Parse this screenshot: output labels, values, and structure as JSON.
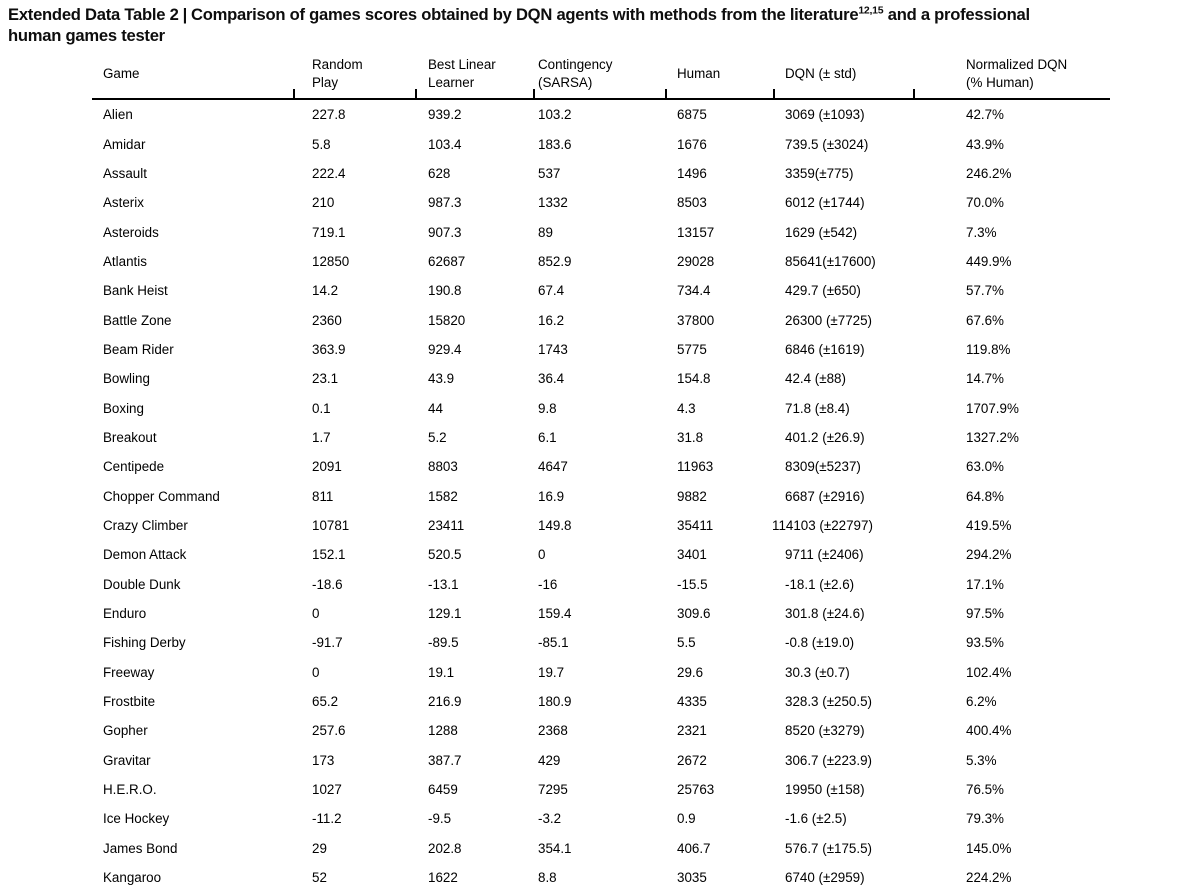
{
  "title": {
    "label": "Extended Data Table 2",
    "separator": "|",
    "text_before_sup": "Comparison of games scores obtained by DQN agents with methods from the literature",
    "superscript": "12,15",
    "text_after_sup": " and a professional",
    "second_line": "human games tester"
  },
  "table": {
    "headers": [
      {
        "line1": "Game",
        "line2": ""
      },
      {
        "line1": "Random",
        "line2": "Play"
      },
      {
        "line1": "Best Linear",
        "line2": "Learner"
      },
      {
        "line1": "Contingency",
        "line2": "(SARSA)"
      },
      {
        "line1": "Human",
        "line2": ""
      },
      {
        "line1": "DQN (± std)",
        "line2": ""
      },
      {
        "line1": "Normalized DQN",
        "line2": "(% Human)"
      }
    ],
    "rows": [
      {
        "game": "Alien",
        "random_play": "227.8",
        "best_linear": "939.2",
        "sarsa": "103.2",
        "human": "6875",
        "dqn": "3069 (±1093)",
        "normalized": "42.7%"
      },
      {
        "game": "Amidar",
        "random_play": "5.8",
        "best_linear": "103.4",
        "sarsa": "183.6",
        "human": "1676",
        "dqn": "739.5 (±3024)",
        "normalized": "43.9%"
      },
      {
        "game": "Assault",
        "random_play": "222.4",
        "best_linear": "628",
        "sarsa": "537",
        "human": "1496",
        "dqn": "3359(±775)",
        "normalized": "246.2%"
      },
      {
        "game": "Asterix",
        "random_play": "210",
        "best_linear": "987.3",
        "sarsa": "1332",
        "human": "8503",
        "dqn": "6012 (±1744)",
        "normalized": "70.0%"
      },
      {
        "game": "Asteroids",
        "random_play": "719.1",
        "best_linear": "907.3",
        "sarsa": "89",
        "human": "13157",
        "dqn": "1629 (±542)",
        "normalized": "7.3%"
      },
      {
        "game": "Atlantis",
        "random_play": "12850",
        "best_linear": "62687",
        "sarsa": "852.9",
        "human": "29028",
        "dqn": "85641(±17600)",
        "normalized": "449.9%"
      },
      {
        "game": "Bank Heist",
        "random_play": "14.2",
        "best_linear": "190.8",
        "sarsa": "67.4",
        "human": "734.4",
        "dqn": "429.7 (±650)",
        "normalized": "57.7%"
      },
      {
        "game": "Battle Zone",
        "random_play": "2360",
        "best_linear": "15820",
        "sarsa": "16.2",
        "human": "37800",
        "dqn": "26300 (±7725)",
        "normalized": "67.6%"
      },
      {
        "game": "Beam Rider",
        "random_play": "363.9",
        "best_linear": "929.4",
        "sarsa": "1743",
        "human": "5775",
        "dqn": "6846 (±1619)",
        "normalized": "119.8%"
      },
      {
        "game": "Bowling",
        "random_play": "23.1",
        "best_linear": "43.9",
        "sarsa": "36.4",
        "human": "154.8",
        "dqn": "42.4 (±88)",
        "normalized": "14.7%"
      },
      {
        "game": "Boxing",
        "random_play": "0.1",
        "best_linear": "44",
        "sarsa": "9.8",
        "human": "4.3",
        "dqn": "71.8 (±8.4)",
        "normalized": "1707.9%"
      },
      {
        "game": "Breakout",
        "random_play": "1.7",
        "best_linear": "5.2",
        "sarsa": "6.1",
        "human": "31.8",
        "dqn": "401.2 (±26.9)",
        "normalized": "1327.2%"
      },
      {
        "game": "Centipede",
        "random_play": "2091",
        "best_linear": "8803",
        "sarsa": "4647",
        "human": "11963",
        "dqn": "8309(±5237)",
        "normalized": "63.0%"
      },
      {
        "game": "Chopper Command",
        "random_play": "811",
        "best_linear": "1582",
        "sarsa": "16.9",
        "human": "9882",
        "dqn": "6687 (±2916)",
        "normalized": "64.8%"
      },
      {
        "game": "Crazy Climber",
        "random_play": "10781",
        "best_linear": "23411",
        "sarsa": "149.8",
        "human": "35411",
        "dqn": "114103 (±22797)",
        "normalized": "419.5%"
      },
      {
        "game": "Demon Attack",
        "random_play": "152.1",
        "best_linear": "520.5",
        "sarsa": "0",
        "human": "3401",
        "dqn": "9711 (±2406)",
        "normalized": "294.2%"
      },
      {
        "game": "Double Dunk",
        "random_play": "-18.6",
        "best_linear": "-13.1",
        "sarsa": "-16",
        "human": "-15.5",
        "dqn": "-18.1 (±2.6)",
        "normalized": "17.1%"
      },
      {
        "game": "Enduro",
        "random_play": "0",
        "best_linear": "129.1",
        "sarsa": "159.4",
        "human": "309.6",
        "dqn": "301.8 (±24.6)",
        "normalized": "97.5%"
      },
      {
        "game": "Fishing Derby",
        "random_play": "-91.7",
        "best_linear": "-89.5",
        "sarsa": "-85.1",
        "human": "5.5",
        "dqn": "-0.8 (±19.0)",
        "normalized": "93.5%"
      },
      {
        "game": "Freeway",
        "random_play": "0",
        "best_linear": "19.1",
        "sarsa": "19.7",
        "human": "29.6",
        "dqn": "30.3 (±0.7)",
        "normalized": "102.4%"
      },
      {
        "game": "Frostbite",
        "random_play": "65.2",
        "best_linear": "216.9",
        "sarsa": "180.9",
        "human": "4335",
        "dqn": "328.3 (±250.5)",
        "normalized": "6.2%"
      },
      {
        "game": "Gopher",
        "random_play": "257.6",
        "best_linear": "1288",
        "sarsa": "2368",
        "human": "2321",
        "dqn": "8520 (±3279)",
        "normalized": "400.4%"
      },
      {
        "game": "Gravitar",
        "random_play": "173",
        "best_linear": "387.7",
        "sarsa": "429",
        "human": "2672",
        "dqn": "306.7 (±223.9)",
        "normalized": "5.3%"
      },
      {
        "game": "H.E.R.O.",
        "random_play": "1027",
        "best_linear": "6459",
        "sarsa": "7295",
        "human": "25763",
        "dqn": "19950 (±158)",
        "normalized": "76.5%"
      },
      {
        "game": "Ice Hockey",
        "random_play": "-11.2",
        "best_linear": "-9.5",
        "sarsa": "-3.2",
        "human": "0.9",
        "dqn": "-1.6 (±2.5)",
        "normalized": "79.3%"
      },
      {
        "game": "James Bond",
        "random_play": "29",
        "best_linear": "202.8",
        "sarsa": "354.1",
        "human": "406.7",
        "dqn": "576.7 (±175.5)",
        "normalized": "145.0%"
      },
      {
        "game": "Kangaroo",
        "random_play": "52",
        "best_linear": "1622",
        "sarsa": "8.8",
        "human": "3035",
        "dqn": "6740 (±2959)",
        "normalized": "224.2%"
      }
    ]
  }
}
